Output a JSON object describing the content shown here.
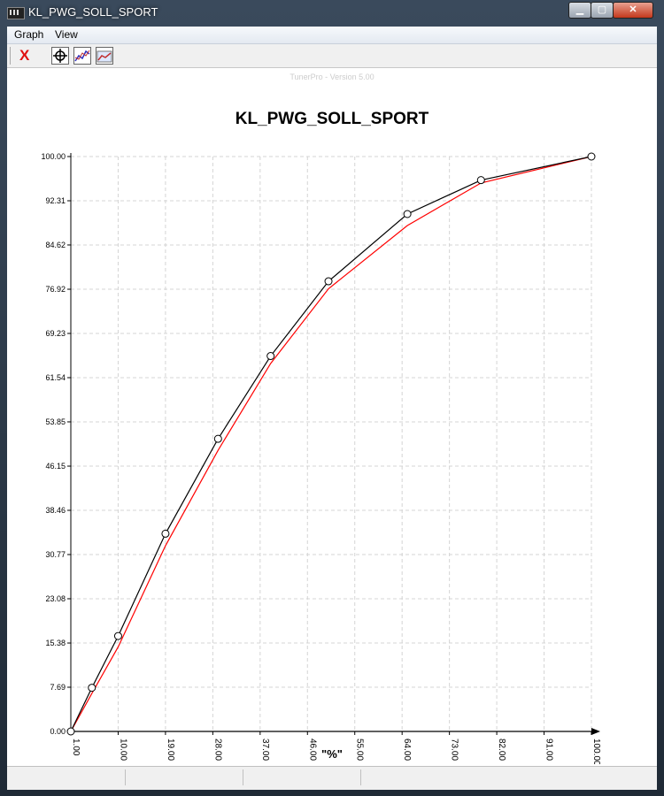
{
  "window": {
    "title": "KL_PWG_SOLL_SPORT"
  },
  "menu": {
    "items": [
      "Graph",
      "View"
    ]
  },
  "toolbar": {
    "close_glyph": "X"
  },
  "chart_data": {
    "type": "line",
    "watermark": "TunerPro - Version 5.00",
    "title": "KL_PWG_SOLL_SPORT",
    "xlabel": "\"%\"",
    "ylabel": "",
    "xlim": [
      1.0,
      100.0
    ],
    "ylim": [
      0.0,
      100.0
    ],
    "x_ticks": [
      "1.00",
      "10.00",
      "19.00",
      "28.00",
      "37.00",
      "46.00",
      "55.00",
      "64.00",
      "73.00",
      "82.00",
      "91.00",
      "100.00"
    ],
    "y_ticks": [
      "0.00",
      "7.69",
      "15.38",
      "23.08",
      "30.77",
      "38.46",
      "46.15",
      "53.85",
      "61.54",
      "69.23",
      "76.92",
      "84.62",
      "92.31",
      "100.00"
    ],
    "grid": true,
    "series": [
      {
        "color": "#000000",
        "markers": true,
        "x": [
          1,
          5,
          10,
          19,
          29,
          39,
          50,
          65,
          79,
          100
        ],
        "y": [
          0,
          7.6,
          16.6,
          34.4,
          50.9,
          65.3,
          78.3,
          90.0,
          95.9,
          100
        ]
      },
      {
        "color": "#ff0000",
        "markers": false,
        "x": [
          1,
          5,
          10,
          19,
          29,
          39,
          50,
          65,
          79,
          100
        ],
        "y": [
          0,
          6.6,
          14.7,
          32.3,
          48.9,
          64.0,
          77.0,
          88.0,
          95.4,
          100
        ]
      }
    ]
  }
}
